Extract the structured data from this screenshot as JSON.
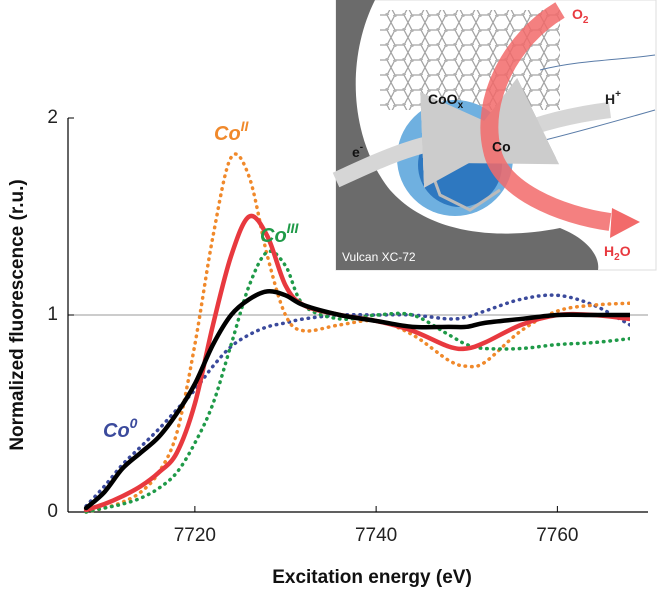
{
  "chart_data": {
    "type": "line",
    "x_label": "Excitation energy (eV)",
    "y_label": "Normalized fluorescence (r.u.)",
    "x": [
      7708,
      7710,
      7712,
      7714,
      7716,
      7718,
      7720,
      7722,
      7724,
      7726,
      7728,
      7730,
      7732,
      7736,
      7740,
      7744,
      7748,
      7750,
      7752,
      7756,
      7760,
      7764,
      7768
    ],
    "series": [
      {
        "label": "Co",
        "label_sup": "0",
        "color": "#3b4a9c",
        "style": "dotted",
        "values": [
          0.03,
          0.13,
          0.24,
          0.33,
          0.42,
          0.52,
          0.62,
          0.74,
          0.84,
          0.9,
          0.94,
          0.96,
          0.98,
          1.0,
          1.0,
          1.0,
          0.98,
          0.99,
          1.02,
          1.08,
          1.1,
          1.05,
          0.95
        ]
      },
      {
        "label": "Co",
        "label_sup": "II",
        "color": "#f0892b",
        "style": "dotted",
        "values": [
          0.0,
          0.02,
          0.05,
          0.1,
          0.2,
          0.4,
          0.85,
          1.4,
          1.8,
          1.7,
          1.3,
          1.0,
          0.92,
          0.95,
          0.97,
          0.9,
          0.77,
          0.74,
          0.76,
          0.92,
          1.02,
          1.05,
          1.06
        ]
      },
      {
        "label": "Co",
        "label_sup": "III",
        "color": "#1f9a48",
        "style": "dotted",
        "values": [
          0.0,
          0.02,
          0.04,
          0.07,
          0.12,
          0.2,
          0.35,
          0.55,
          0.85,
          1.15,
          1.32,
          1.25,
          1.05,
          0.98,
          1.0,
          1.0,
          0.9,
          0.85,
          0.83,
          0.83,
          0.85,
          0.86,
          0.88
        ]
      },
      {
        "color": "#e8393f",
        "style": "solid",
        "values": [
          0.01,
          0.04,
          0.08,
          0.13,
          0.2,
          0.3,
          0.55,
          0.95,
          1.3,
          1.5,
          1.4,
          1.15,
          1.05,
          1.0,
          0.97,
          0.92,
          0.84,
          0.83,
          0.86,
          0.95,
          1.0,
          1.0,
          0.98
        ]
      },
      {
        "color": "#000000",
        "style": "solid",
        "values": [
          0.02,
          0.1,
          0.22,
          0.3,
          0.38,
          0.5,
          0.65,
          0.85,
          1.0,
          1.08,
          1.12,
          1.1,
          1.05,
          1.0,
          0.97,
          0.94,
          0.94,
          0.94,
          0.96,
          0.98,
          1.0,
          1.0,
          1.0
        ]
      }
    ],
    "xlim": [
      7706,
      7770
    ],
    "xticks": [
      7720,
      7740,
      7760
    ],
    "ylim": [
      0,
      2
    ],
    "yticks": [
      0,
      1,
      2
    ],
    "reference_line": 1
  },
  "inset": {
    "o2": {
      "text": "O",
      "sub": "2"
    },
    "h_plus": {
      "text": "H",
      "sup": "+"
    },
    "coox": {
      "text": "CoO",
      "sub": "x"
    },
    "electron": {
      "text": "e",
      "sup": "-"
    },
    "co": {
      "text": "Co"
    },
    "h2o": {
      "text": "H",
      "sub": "2",
      "tail": "O"
    },
    "support": {
      "text": "Vulcan XC-72"
    }
  }
}
